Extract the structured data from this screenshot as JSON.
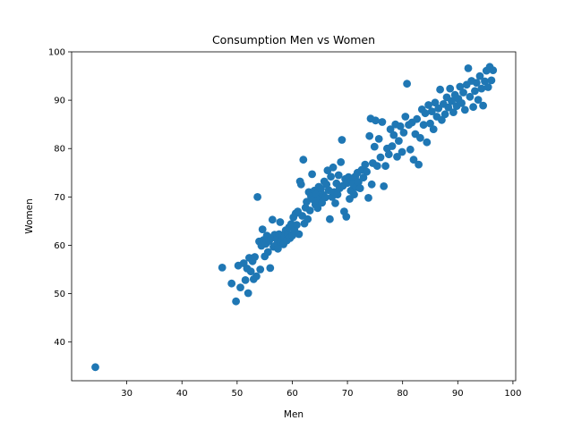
{
  "chart_data": {
    "type": "scatter",
    "title": "Consumption Men vs Women",
    "xlabel": "Men",
    "ylabel": "Women",
    "xlim": [
      20,
      100.5
    ],
    "ylim": [
      32,
      100
    ],
    "xticks": [
      30,
      40,
      50,
      60,
      70,
      80,
      90,
      100
    ],
    "yticks": [
      40,
      50,
      60,
      70,
      80,
      90,
      100
    ],
    "grid": false,
    "legend": "none",
    "marker_color": "#1f77b4",
    "points": [
      [
        24.3,
        34.8
      ],
      [
        47.3,
        55.4
      ],
      [
        49.0,
        52.1
      ],
      [
        49.8,
        48.4
      ],
      [
        50.2,
        55.8
      ],
      [
        50.6,
        51.3
      ],
      [
        51.2,
        56.3
      ],
      [
        51.5,
        52.8
      ],
      [
        51.8,
        55.2
      ],
      [
        52.0,
        50.1
      ],
      [
        52.2,
        57.4
      ],
      [
        52.5,
        54.6
      ],
      [
        52.8,
        56.7
      ],
      [
        53.0,
        53.0
      ],
      [
        53.2,
        57.6
      ],
      [
        53.5,
        53.6
      ],
      [
        53.7,
        70.0
      ],
      [
        54.0,
        60.8
      ],
      [
        54.2,
        55.0
      ],
      [
        54.4,
        59.9
      ],
      [
        54.6,
        63.3
      ],
      [
        54.8,
        61.1
      ],
      [
        55.0,
        57.7
      ],
      [
        55.2,
        60.3
      ],
      [
        55.4,
        62.0
      ],
      [
        55.6,
        58.6
      ],
      [
        55.8,
        60.9
      ],
      [
        56.0,
        55.3
      ],
      [
        56.2,
        61.5
      ],
      [
        56.4,
        65.3
      ],
      [
        56.6,
        59.7
      ],
      [
        56.8,
        62.2
      ],
      [
        57.0,
        60.0
      ],
      [
        57.2,
        61.3
      ],
      [
        57.4,
        59.3
      ],
      [
        57.6,
        62.3
      ],
      [
        57.8,
        64.8
      ],
      [
        58.0,
        60.7
      ],
      [
        58.2,
        62.0
      ],
      [
        58.4,
        60.2
      ],
      [
        58.6,
        61.8
      ],
      [
        58.8,
        63.1
      ],
      [
        59.0,
        61.0
      ],
      [
        59.2,
        62.4
      ],
      [
        59.4,
        63.7
      ],
      [
        59.6,
        61.5
      ],
      [
        59.8,
        64.4
      ],
      [
        60.0,
        62.0
      ],
      [
        60.2,
        65.8
      ],
      [
        60.4,
        63.1
      ],
      [
        60.6,
        66.6
      ],
      [
        60.8,
        64.2
      ],
      [
        61.0,
        67.0
      ],
      [
        61.2,
        62.3
      ],
      [
        61.4,
        73.2
      ],
      [
        61.6,
        72.6
      ],
      [
        61.8,
        66.1
      ],
      [
        62.0,
        77.7
      ],
      [
        62.2,
        64.5
      ],
      [
        62.4,
        67.8
      ],
      [
        62.6,
        69.0
      ],
      [
        62.8,
        65.4
      ],
      [
        63.0,
        71.0
      ],
      [
        63.2,
        67.2
      ],
      [
        63.4,
        70.1
      ],
      [
        63.6,
        74.7
      ],
      [
        63.8,
        69.5
      ],
      [
        64.0,
        71.3
      ],
      [
        64.2,
        68.4
      ],
      [
        64.4,
        70.6
      ],
      [
        64.6,
        67.7
      ],
      [
        64.8,
        72.1
      ],
      [
        65.0,
        69.6
      ],
      [
        65.2,
        71.7
      ],
      [
        65.4,
        68.8
      ],
      [
        65.6,
        70.4
      ],
      [
        65.8,
        73.2
      ],
      [
        66.0,
        69.9
      ],
      [
        66.2,
        72.6
      ],
      [
        66.4,
        75.5
      ],
      [
        66.6,
        71.4
      ],
      [
        66.8,
        65.4
      ],
      [
        67.0,
        74.2
      ],
      [
        67.2,
        70.0
      ],
      [
        67.4,
        76.1
      ],
      [
        67.6,
        71.0
      ],
      [
        67.8,
        68.7
      ],
      [
        68.0,
        72.8
      ],
      [
        68.2,
        70.5
      ],
      [
        68.4,
        74.5
      ],
      [
        68.6,
        71.8
      ],
      [
        68.8,
        77.2
      ],
      [
        69.0,
        81.8
      ],
      [
        69.2,
        72.3
      ],
      [
        69.4,
        67.0
      ],
      [
        69.6,
        73.7
      ],
      [
        69.8,
        65.9
      ],
      [
        70.0,
        72.9
      ],
      [
        70.2,
        74.1
      ],
      [
        70.4,
        69.6
      ],
      [
        70.6,
        71.3
      ],
      [
        70.8,
        73.4
      ],
      [
        71.0,
        72.7
      ],
      [
        71.2,
        70.5
      ],
      [
        71.4,
        74.2
      ],
      [
        71.6,
        72.0
      ],
      [
        71.8,
        75.0
      ],
      [
        72.0,
        73.1
      ],
      [
        72.3,
        71.8
      ],
      [
        72.6,
        75.6
      ],
      [
        72.9,
        74.0
      ],
      [
        73.2,
        76.7
      ],
      [
        73.5,
        75.2
      ],
      [
        73.8,
        69.8
      ],
      [
        74.0,
        82.6
      ],
      [
        74.2,
        86.2
      ],
      [
        74.4,
        72.6
      ],
      [
        74.6,
        77.0
      ],
      [
        74.9,
        80.4
      ],
      [
        75.1,
        85.8
      ],
      [
        75.4,
        76.4
      ],
      [
        75.7,
        82.0
      ],
      [
        76.0,
        78.2
      ],
      [
        76.3,
        85.5
      ],
      [
        76.6,
        72.2
      ],
      [
        76.9,
        76.4
      ],
      [
        77.2,
        80.0
      ],
      [
        77.5,
        78.8
      ],
      [
        77.8,
        84.0
      ],
      [
        78.1,
        80.5
      ],
      [
        78.4,
        82.8
      ],
      [
        78.7,
        85.0
      ],
      [
        79.0,
        78.3
      ],
      [
        79.3,
        81.6
      ],
      [
        79.6,
        84.6
      ],
      [
        79.9,
        79.3
      ],
      [
        80.2,
        83.3
      ],
      [
        80.5,
        86.6
      ],
      [
        80.8,
        93.4
      ],
      [
        81.1,
        84.9
      ],
      [
        81.4,
        79.8
      ],
      [
        81.7,
        85.4
      ],
      [
        82.0,
        77.7
      ],
      [
        82.3,
        83.0
      ],
      [
        82.6,
        86.1
      ],
      [
        82.9,
        76.7
      ],
      [
        83.2,
        82.2
      ],
      [
        83.5,
        88.1
      ],
      [
        83.8,
        84.9
      ],
      [
        84.1,
        87.3
      ],
      [
        84.4,
        81.3
      ],
      [
        84.7,
        89.0
      ],
      [
        85.0,
        85.2
      ],
      [
        85.3,
        87.7
      ],
      [
        85.6,
        84.0
      ],
      [
        85.9,
        89.5
      ],
      [
        86.2,
        86.6
      ],
      [
        86.5,
        88.3
      ],
      [
        86.8,
        92.2
      ],
      [
        87.1,
        85.9
      ],
      [
        87.4,
        89.2
      ],
      [
        87.7,
        87.1
      ],
      [
        88.0,
        90.6
      ],
      [
        88.3,
        88.5
      ],
      [
        88.6,
        92.4
      ],
      [
        88.9,
        89.8
      ],
      [
        89.2,
        87.5
      ],
      [
        89.5,
        91.1
      ],
      [
        89.8,
        88.8
      ],
      [
        90.1,
        90.3
      ],
      [
        90.4,
        92.8
      ],
      [
        90.7,
        89.4
      ],
      [
        91.0,
        91.6
      ],
      [
        91.3,
        88.0
      ],
      [
        91.6,
        93.2
      ],
      [
        91.9,
        96.6
      ],
      [
        92.2,
        90.7
      ],
      [
        92.5,
        94.0
      ],
      [
        92.8,
        88.6
      ],
      [
        93.1,
        91.9
      ],
      [
        93.4,
        93.6
      ],
      [
        93.7,
        90.1
      ],
      [
        94.0,
        95.0
      ],
      [
        94.3,
        92.4
      ],
      [
        94.6,
        88.9
      ],
      [
        94.9,
        93.9
      ],
      [
        95.2,
        96.1
      ],
      [
        95.5,
        92.7
      ],
      [
        95.8,
        96.9
      ],
      [
        96.1,
        94.1
      ],
      [
        96.4,
        96.2
      ]
    ]
  }
}
